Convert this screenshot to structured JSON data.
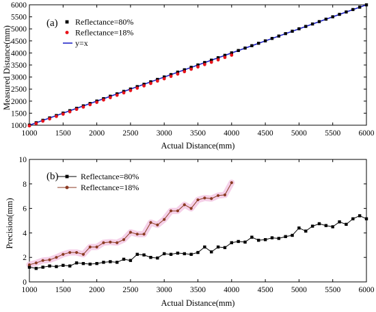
{
  "chart_data": [
    {
      "type": "line",
      "panel_label": "(a)",
      "xlabel": "Actual Distance(mm)",
      "ylabel": "Measured Distance(mm)",
      "xlim": [
        1000,
        6000
      ],
      "ylim": [
        1000,
        6000
      ],
      "xticks": [
        1000,
        1500,
        2000,
        2500,
        3000,
        3500,
        4000,
        4500,
        5000,
        5500,
        6000
      ],
      "yticks": [
        1000,
        1500,
        2000,
        2500,
        3000,
        3500,
        4000,
        4500,
        5000,
        5500,
        6000
      ],
      "legend_position": "top-left",
      "series": [
        {
          "name": "Reflectance=80%",
          "marker": "square",
          "color": "#000000",
          "x": [
            1000,
            1100,
            1200,
            1300,
            1400,
            1500,
            1600,
            1700,
            1800,
            1900,
            2000,
            2100,
            2200,
            2300,
            2400,
            2500,
            2600,
            2700,
            2800,
            2900,
            3000,
            3100,
            3200,
            3300,
            3400,
            3500,
            3600,
            3700,
            3800,
            3900,
            4000,
            4100,
            4200,
            4300,
            4400,
            4500,
            4600,
            4700,
            4800,
            4900,
            5000,
            5100,
            5200,
            5300,
            5400,
            5500,
            5600,
            5700,
            5800,
            5900,
            6000
          ],
          "y": [
            1005,
            1102,
            1203,
            1302,
            1403,
            1502,
            1603,
            1702,
            1803,
            1902,
            2003,
            2102,
            2203,
            2302,
            2403,
            2502,
            2603,
            2702,
            2803,
            2902,
            3003,
            3102,
            3203,
            3302,
            3403,
            3502,
            3603,
            3702,
            3803,
            3902,
            4003,
            4102,
            4203,
            4302,
            4403,
            4502,
            4603,
            4702,
            4803,
            4902,
            5003,
            5102,
            5203,
            5302,
            5403,
            5502,
            5603,
            5702,
            5803,
            5902,
            5998
          ]
        },
        {
          "name": "Reflectance=18%",
          "marker": "circle",
          "color": "#e8141b",
          "x": [
            1000,
            1100,
            1200,
            1300,
            1400,
            1500,
            1600,
            1700,
            1800,
            1900,
            2000,
            2100,
            2200,
            2300,
            2400,
            2500,
            2600,
            2700,
            2800,
            2900,
            3000,
            3100,
            3200,
            3300,
            3400,
            3500,
            3600,
            3700,
            3800,
            3900,
            4000
          ],
          "y": [
            975,
            1070,
            1170,
            1265,
            1365,
            1460,
            1560,
            1660,
            1755,
            1855,
            1950,
            2050,
            2145,
            2245,
            2345,
            2440,
            2540,
            2635,
            2735,
            2835,
            2930,
            3030,
            3125,
            3225,
            3325,
            3420,
            3520,
            3615,
            3715,
            3815,
            3910
          ]
        },
        {
          "name": "y=x",
          "marker": "none",
          "color": "#1f24c8",
          "x": [
            1000,
            6000
          ],
          "y": [
            1000,
            6000
          ]
        }
      ]
    },
    {
      "type": "line",
      "panel_label": "(b)",
      "xlabel": "Actual Distance(mm)",
      "ylabel": "Precision(mm)",
      "xlim": [
        1000,
        6000
      ],
      "ylim": [
        0,
        10
      ],
      "xticks": [
        1000,
        1500,
        2000,
        2500,
        3000,
        3500,
        4000,
        4500,
        5000,
        5500,
        6000
      ],
      "yticks": [
        0,
        2,
        4,
        6,
        8,
        10
      ],
      "legend_position": "top-left",
      "series": [
        {
          "name": "Reflectance=80%",
          "marker": "square",
          "color": "#000000",
          "x": [
            1000,
            1100,
            1200,
            1300,
            1400,
            1500,
            1600,
            1700,
            1800,
            1900,
            2000,
            2100,
            2200,
            2300,
            2400,
            2500,
            2600,
            2700,
            2800,
            2900,
            3000,
            3100,
            3200,
            3300,
            3400,
            3500,
            3600,
            3700,
            3800,
            3900,
            4000,
            4100,
            4200,
            4300,
            4400,
            4500,
            4600,
            4700,
            4800,
            4900,
            5000,
            5100,
            5200,
            5300,
            5400,
            5500,
            5600,
            5700,
            5800,
            5900,
            6000
          ],
          "y": [
            1.2,
            1.1,
            1.2,
            1.3,
            1.25,
            1.35,
            1.3,
            1.55,
            1.5,
            1.45,
            1.5,
            1.6,
            1.65,
            1.6,
            1.85,
            1.75,
            2.25,
            2.2,
            2.0,
            1.95,
            2.3,
            2.25,
            2.35,
            2.3,
            2.25,
            2.4,
            2.85,
            2.45,
            2.85,
            2.8,
            3.2,
            3.3,
            3.25,
            3.65,
            3.4,
            3.45,
            3.6,
            3.55,
            3.7,
            3.8,
            4.4,
            4.15,
            4.55,
            4.75,
            4.6,
            4.5,
            4.9,
            4.7,
            5.15,
            5.4,
            5.15
          ]
        },
        {
          "name": "Reflectance=18%",
          "marker": "circle",
          "color": "#8b3a22",
          "x": [
            1000,
            1100,
            1200,
            1300,
            1400,
            1500,
            1600,
            1700,
            1800,
            1900,
            2000,
            2100,
            2200,
            2300,
            2400,
            2500,
            2600,
            2700,
            2800,
            2900,
            3000,
            3100,
            3200,
            3300,
            3400,
            3500,
            3600,
            3700,
            3800,
            3900,
            4000
          ],
          "y": [
            1.4,
            1.55,
            1.75,
            1.8,
            2.0,
            2.25,
            2.4,
            2.4,
            2.25,
            2.85,
            2.85,
            3.2,
            3.25,
            3.2,
            3.45,
            4.05,
            3.9,
            3.9,
            4.85,
            4.65,
            5.1,
            5.8,
            5.8,
            6.3,
            6.0,
            6.7,
            6.85,
            6.8,
            7.05,
            7.1,
            8.1
          ]
        }
      ]
    }
  ]
}
